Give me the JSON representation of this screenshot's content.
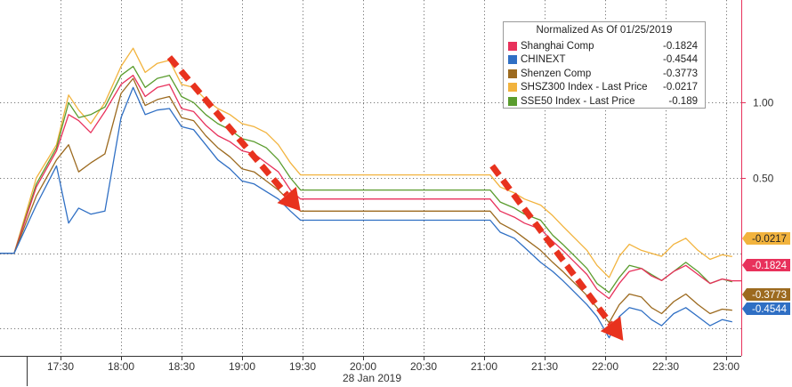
{
  "chart_data": {
    "type": "line",
    "legend": {
      "title": "Normalized As Of 01/25/2019",
      "placement": "top-right"
    },
    "xlabel": "28 Jan 2019",
    "x_ticks": [
      "17:30",
      "18:00",
      "18:30",
      "19:00",
      "19:30",
      "20:00",
      "20:30",
      "21:00",
      "21:30",
      "22:00",
      "22:30",
      "23:00"
    ],
    "y_ticks": [
      "1.00",
      "0.50"
    ],
    "grid": true,
    "xlim": [
      "17:00",
      "23:07"
    ],
    "ylim": [
      -0.68,
      1.68
    ],
    "series": [
      {
        "name": "Shanghai Comp",
        "color": "#e8315b",
        "last": "-0.1824",
        "x": [
          "17:00",
          "17:07",
          "17:18",
          "17:28",
          "17:34",
          "17:39",
          "17:45",
          "17:52",
          "18:00",
          "18:06",
          "18:12",
          "18:18",
          "18:24",
          "18:30",
          "18:36",
          "18:42",
          "18:48",
          "18:54",
          "19:00",
          "19:06",
          "19:12",
          "19:18",
          "19:24",
          "19:29",
          "21:03",
          "21:08",
          "21:15",
          "21:20",
          "21:28",
          "21:34",
          "21:39",
          "21:45",
          "21:51",
          "21:56",
          "22:02",
          "22:07",
          "22:12",
          "22:18",
          "22:23",
          "22:28",
          "22:34",
          "22:40",
          "22:46",
          "22:52",
          "22:58",
          "23:03"
        ],
        "values": [
          0.0,
          0.0,
          0.44,
          0.68,
          0.92,
          0.88,
          0.8,
          0.94,
          1.12,
          1.18,
          1.04,
          1.1,
          1.12,
          0.96,
          0.94,
          0.85,
          0.78,
          0.74,
          0.68,
          0.66,
          0.6,
          0.54,
          0.42,
          0.36,
          0.36,
          0.28,
          0.24,
          0.2,
          0.16,
          0.08,
          0.02,
          -0.06,
          -0.14,
          -0.24,
          -0.3,
          -0.2,
          -0.12,
          -0.1,
          -0.15,
          -0.18,
          -0.12,
          -0.08,
          -0.14,
          -0.2,
          -0.17,
          -0.1824
        ]
      },
      {
        "name": "CHINEXT",
        "color": "#2f6fc4",
        "last": "-0.4544",
        "x": [
          "17:00",
          "17:07",
          "17:18",
          "17:28",
          "17:34",
          "17:39",
          "17:45",
          "17:52",
          "18:00",
          "18:06",
          "18:12",
          "18:18",
          "18:24",
          "18:30",
          "18:36",
          "18:42",
          "18:48",
          "18:54",
          "19:00",
          "19:06",
          "19:12",
          "19:18",
          "19:24",
          "19:29",
          "21:03",
          "21:08",
          "21:15",
          "21:20",
          "21:28",
          "21:34",
          "21:39",
          "21:45",
          "21:51",
          "21:56",
          "22:02",
          "22:07",
          "22:12",
          "22:18",
          "22:23",
          "22:28",
          "22:34",
          "22:40",
          "22:46",
          "22:52",
          "22:58",
          "23:03"
        ],
        "values": [
          0.0,
          0.0,
          0.32,
          0.58,
          0.2,
          0.3,
          0.26,
          0.28,
          0.9,
          1.1,
          0.92,
          0.95,
          0.96,
          0.84,
          0.82,
          0.72,
          0.62,
          0.56,
          0.48,
          0.46,
          0.41,
          0.36,
          0.28,
          0.22,
          0.22,
          0.14,
          0.1,
          0.04,
          -0.06,
          -0.12,
          -0.18,
          -0.26,
          -0.34,
          -0.42,
          -0.56,
          -0.42,
          -0.36,
          -0.38,
          -0.44,
          -0.48,
          -0.4,
          -0.36,
          -0.42,
          -0.48,
          -0.44,
          -0.4544
        ]
      },
      {
        "name": "Shenzen Comp",
        "color": "#9c6a1f",
        "last": "-0.3773",
        "x": [
          "17:00",
          "17:07",
          "17:18",
          "17:28",
          "17:34",
          "17:39",
          "17:45",
          "17:52",
          "18:00",
          "18:06",
          "18:12",
          "18:18",
          "18:24",
          "18:30",
          "18:36",
          "18:42",
          "18:48",
          "18:54",
          "19:00",
          "19:06",
          "19:12",
          "19:18",
          "19:24",
          "19:29",
          "21:03",
          "21:08",
          "21:15",
          "21:20",
          "21:28",
          "21:34",
          "21:39",
          "21:45",
          "21:51",
          "21:56",
          "22:02",
          "22:07",
          "22:12",
          "22:18",
          "22:23",
          "22:28",
          "22:34",
          "22:40",
          "22:46",
          "22:52",
          "22:58",
          "23:03"
        ],
        "values": [
          0.0,
          0.0,
          0.38,
          0.62,
          0.72,
          0.54,
          0.6,
          0.66,
          1.06,
          1.16,
          0.98,
          1.02,
          1.04,
          0.9,
          0.88,
          0.78,
          0.7,
          0.64,
          0.56,
          0.54,
          0.48,
          0.42,
          0.34,
          0.28,
          0.28,
          0.2,
          0.15,
          0.1,
          0.02,
          -0.06,
          -0.12,
          -0.2,
          -0.28,
          -0.36,
          -0.46,
          -0.34,
          -0.27,
          -0.29,
          -0.36,
          -0.4,
          -0.32,
          -0.27,
          -0.34,
          -0.4,
          -0.37,
          -0.3773
        ]
      },
      {
        "name": "SHSZ300 Index - Last Price",
        "color": "#f2b33d",
        "last": "-0.0217",
        "x": [
          "17:00",
          "17:07",
          "17:18",
          "17:28",
          "17:34",
          "17:39",
          "17:45",
          "17:52",
          "18:00",
          "18:06",
          "18:12",
          "18:18",
          "18:24",
          "18:30",
          "18:36",
          "18:42",
          "18:48",
          "18:54",
          "19:00",
          "19:06",
          "19:12",
          "19:18",
          "19:24",
          "19:29",
          "21:03",
          "21:08",
          "21:15",
          "21:20",
          "21:28",
          "21:34",
          "21:39",
          "21:45",
          "21:51",
          "21:56",
          "22:02",
          "22:07",
          "22:12",
          "22:18",
          "22:23",
          "22:28",
          "22:34",
          "22:40",
          "22:46",
          "22:52",
          "22:58",
          "23:03"
        ],
        "values": [
          0.0,
          0.0,
          0.5,
          0.72,
          1.05,
          0.95,
          0.86,
          1.0,
          1.24,
          1.36,
          1.2,
          1.26,
          1.28,
          1.12,
          1.1,
          1.02,
          0.96,
          0.92,
          0.86,
          0.84,
          0.8,
          0.72,
          0.6,
          0.52,
          0.52,
          0.44,
          0.4,
          0.36,
          0.32,
          0.25,
          0.18,
          0.1,
          0.02,
          -0.08,
          -0.16,
          -0.02,
          0.06,
          0.02,
          0.0,
          -0.02,
          0.06,
          0.1,
          0.02,
          -0.04,
          -0.01,
          -0.0217
        ]
      },
      {
        "name": "SSE50 Index - Last Price",
        "color": "#5a9c2e",
        "last": "-0.189",
        "x": [
          "17:00",
          "17:07",
          "17:18",
          "17:28",
          "17:34",
          "17:39",
          "17:45",
          "17:52",
          "18:00",
          "18:06",
          "18:12",
          "18:18",
          "18:24",
          "18:30",
          "18:36",
          "18:42",
          "18:48",
          "18:54",
          "19:00",
          "19:06",
          "19:12",
          "19:18",
          "19:24",
          "19:29",
          "21:03",
          "21:08",
          "21:15",
          "21:20",
          "21:28",
          "21:34",
          "21:39",
          "21:45",
          "21:51",
          "21:56",
          "22:02",
          "22:07",
          "22:12",
          "22:18",
          "22:23",
          "22:28",
          "22:34",
          "22:40",
          "22:46",
          "22:52",
          "22:58",
          "23:03"
        ],
        "values": [
          0.0,
          0.0,
          0.46,
          0.7,
          1.0,
          0.9,
          0.92,
          0.97,
          1.18,
          1.24,
          1.1,
          1.16,
          1.18,
          1.04,
          1.0,
          0.92,
          0.86,
          0.82,
          0.76,
          0.74,
          0.7,
          0.62,
          0.5,
          0.42,
          0.42,
          0.34,
          0.3,
          0.26,
          0.22,
          0.12,
          0.06,
          -0.02,
          -0.1,
          -0.2,
          -0.26,
          -0.16,
          -0.08,
          -0.1,
          -0.14,
          -0.18,
          -0.12,
          -0.06,
          -0.12,
          -0.2,
          -0.17,
          -0.189
        ]
      }
    ],
    "annotations": [
      {
        "type": "dashed-arrow",
        "color": "#e8321e",
        "from": {
          "x": "18:24",
          "y": 1.3
        },
        "to": {
          "x": "19:29",
          "y": 0.28
        }
      },
      {
        "type": "dashed-arrow",
        "color": "#e8321e",
        "from": {
          "x": "21:04",
          "y": 0.58
        },
        "to": {
          "x": "22:09",
          "y": -0.58
        }
      }
    ]
  }
}
